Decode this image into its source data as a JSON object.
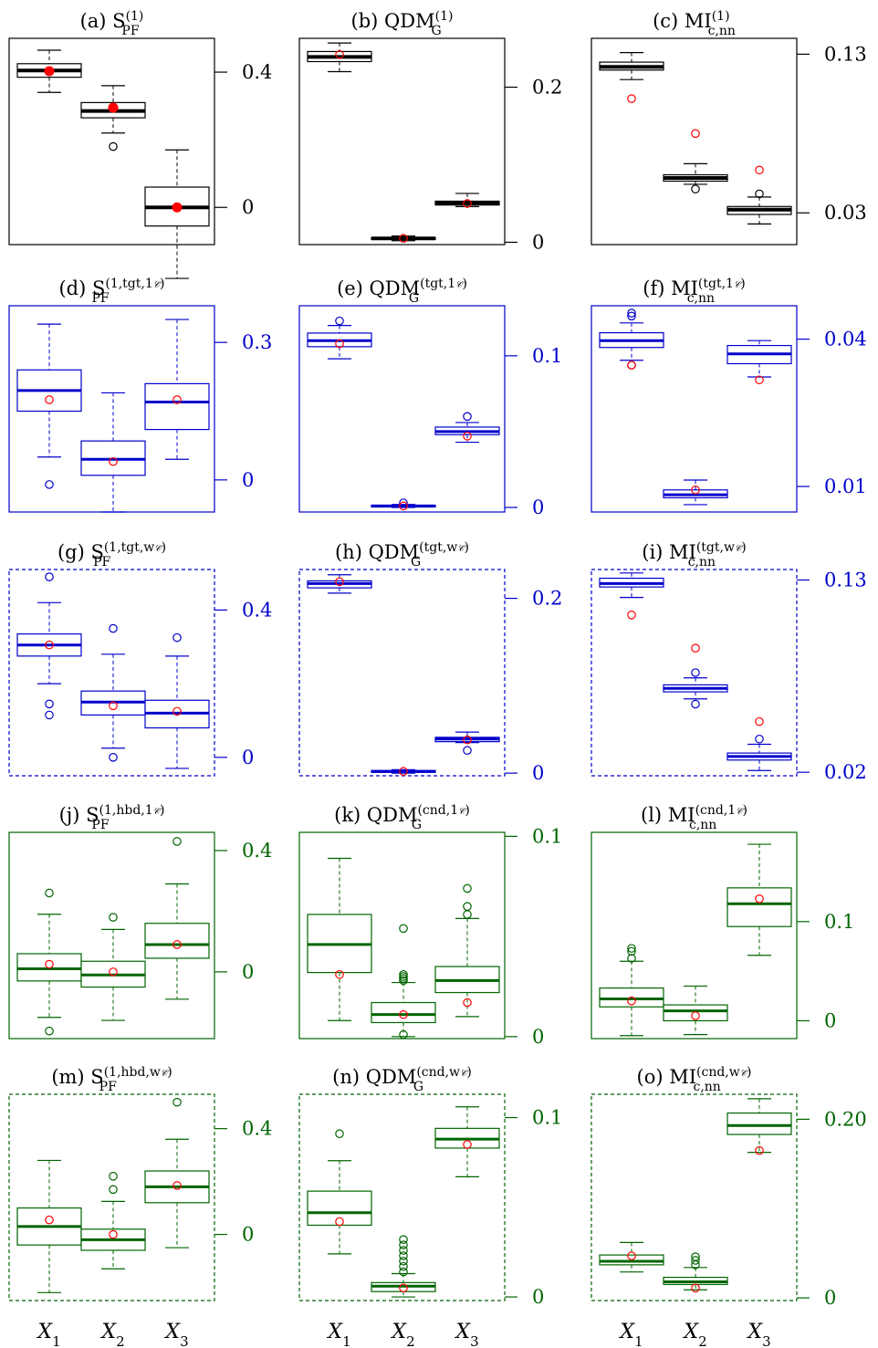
{
  "figure": {
    "x_categories": [
      "X1",
      "X2",
      "X3"
    ],
    "colors": {
      "black": "#000000",
      "blue": "#0000cc",
      "green": "#006400",
      "red": "#ff0000"
    }
  },
  "chart_data": [
    {
      "id": "a",
      "type": "boxplot",
      "title": "(a) S_PF^(1)",
      "title_parts": {
        "prefix": "(a) ",
        "base": "S",
        "sup": "(1)",
        "sub": "PF"
      },
      "color": "black",
      "border": "solid",
      "median_width": 4,
      "mean_marker": "filled",
      "ylim": [
        -0.11,
        0.5
      ],
      "yticks": [
        {
          "v": 0,
          "label": "0"
        },
        {
          "v": 0.4,
          "label": "0.4"
        }
      ],
      "boxes": [
        {
          "whislo": 0.34,
          "q1": 0.385,
          "med": 0.405,
          "q3": 0.425,
          "whishi": 0.465,
          "mean": 0.403,
          "outliers": []
        },
        {
          "whislo": 0.22,
          "q1": 0.265,
          "med": 0.285,
          "q3": 0.31,
          "whishi": 0.36,
          "mean": 0.295,
          "outliers": [
            0.18
          ]
        },
        {
          "whislo": -0.21,
          "q1": -0.055,
          "med": 0,
          "q3": 0.06,
          "whishi": 0.17,
          "mean": 0,
          "outliers": []
        }
      ]
    },
    {
      "id": "b",
      "type": "boxplot",
      "title": "(b) QDM_G^(1)",
      "title_parts": {
        "prefix": "(b) ",
        "base": "QDM",
        "sup": "(1)",
        "sub": "G"
      },
      "color": "black",
      "border": "solid",
      "median_width": 4,
      "mean_marker": "open",
      "ylim": [
        -0.003,
        0.263
      ],
      "yticks": [
        {
          "v": 0,
          "label": "0"
        },
        {
          "v": 0.2,
          "label": "0.2"
        }
      ],
      "boxes": [
        {
          "whislo": 0.22,
          "q1": 0.233,
          "med": 0.239,
          "q3": 0.246,
          "whishi": 0.257,
          "mean": 0.242,
          "outliers": []
        },
        {
          "whislo": 0.002,
          "q1": 0.004,
          "med": 0.005,
          "q3": 0.006,
          "whishi": 0.008,
          "mean": 0.005,
          "outliers": []
        },
        {
          "whislo": 0.046,
          "q1": 0.048,
          "med": 0.051,
          "q3": 0.053,
          "whishi": 0.063,
          "mean": 0.05,
          "outliers": []
        }
      ]
    },
    {
      "id": "c",
      "type": "boxplot",
      "title": "(c) MI_c,nn^(1)",
      "title_parts": {
        "prefix": "(c) ",
        "base": "MI",
        "sup": "(1)",
        "sub": "c,nn"
      },
      "color": "black",
      "border": "solid",
      "median_width": 4,
      "mean_marker": "open",
      "ylim": [
        0.01,
        0.14
      ],
      "yticks": [
        {
          "v": 0.03,
          "label": "0.03"
        },
        {
          "v": 0.13,
          "label": "0.13"
        }
      ],
      "boxes": [
        {
          "whislo": 0.114,
          "q1": 0.12,
          "med": 0.122,
          "q3": 0.125,
          "whishi": 0.131,
          "mean": 0.102,
          "outliers": []
        },
        {
          "whislo": 0.048,
          "q1": 0.05,
          "med": 0.052,
          "q3": 0.054,
          "whishi": 0.061,
          "mean": 0.08,
          "outliers": [
            0.045
          ]
        },
        {
          "whislo": 0.023,
          "q1": 0.029,
          "med": 0.032,
          "q3": 0.034,
          "whishi": 0.04,
          "mean": 0.057,
          "outliers": [
            0.042
          ]
        }
      ]
    },
    {
      "id": "d",
      "type": "boxplot",
      "title": "(d) S_PF^(1,tgt,1_C)",
      "title_parts": {
        "prefix": "(d) ",
        "base": "S",
        "sup": "(1,tgt,1",
        "sup_script": "𝒞",
        "sup_end": ")",
        "sub": "PF"
      },
      "color": "blue",
      "border": "solid",
      "median_width": 3,
      "mean_marker": "open",
      "ylim": [
        -0.07,
        0.38
      ],
      "yticks": [
        {
          "v": 0,
          "label": "0"
        },
        {
          "v": 0.3,
          "label": "0.3"
        }
      ],
      "boxes": [
        {
          "whislo": 0.05,
          "q1": 0.15,
          "med": 0.195,
          "q3": 0.24,
          "whishi": 0.34,
          "mean": 0.175,
          "outliers": [
            -0.01
          ]
        },
        {
          "whislo": -0.07,
          "q1": 0.01,
          "med": 0.045,
          "q3": 0.085,
          "whishi": 0.19,
          "mean": 0.04,
          "outliers": []
        },
        {
          "whislo": 0.045,
          "q1": 0.11,
          "med": 0.17,
          "q3": 0.21,
          "whishi": 0.35,
          "mean": 0.175,
          "outliers": []
        }
      ]
    },
    {
      "id": "e",
      "type": "boxplot",
      "title": "(e) QDM_G^(tgt,1_C)",
      "title_parts": {
        "prefix": "(e) ",
        "base": "QDM",
        "sup": "(tgt,1",
        "sup_script": "𝒞",
        "sup_end": ")",
        "sub": "G"
      },
      "color": "blue",
      "border": "solid",
      "median_width": 3,
      "mean_marker": "open",
      "ylim": [
        -0.003,
        0.133
      ],
      "yticks": [
        {
          "v": 0,
          "label": "0"
        },
        {
          "v": 0.1,
          "label": "0.1"
        }
      ],
      "boxes": [
        {
          "whislo": 0.098,
          "q1": 0.106,
          "med": 0.11,
          "q3": 0.115,
          "whishi": 0.12,
          "mean": 0.108,
          "outliers": [
            0.123
          ]
        },
        {
          "whislo": 0.0,
          "q1": 0.0005,
          "med": 0.001,
          "q3": 0.0015,
          "whishi": 0.002,
          "mean": 0.001,
          "outliers": [
            0.003
          ]
        },
        {
          "whislo": 0.043,
          "q1": 0.048,
          "med": 0.05,
          "q3": 0.053,
          "whishi": 0.056,
          "mean": 0.047,
          "outliers": [
            0.06
          ]
        }
      ]
    },
    {
      "id": "f",
      "type": "boxplot",
      "title": "(f) MI_c,nn^(tgt,1_C)",
      "title_parts": {
        "prefix": "(f) ",
        "base": "MI",
        "sup": "(tgt,1",
        "sup_script": "𝒞",
        "sup_end": ")",
        "sub": "c,nn"
      },
      "color": "blue",
      "border": "solid",
      "median_width": 3,
      "mean_marker": "open",
      "ylim": [
        0.0048,
        0.0468
      ],
      "yticks": [
        {
          "v": 0.01,
          "label": "0.01"
        },
        {
          "v": 0.04,
          "label": "0.04"
        }
      ],
      "boxes": [
        {
          "whislo": 0.0357,
          "q1": 0.0383,
          "med": 0.0397,
          "q3": 0.0413,
          "whishi": 0.0433,
          "mean": 0.0347,
          "outliers": [
            0.0347,
            0.0447,
            0.0453
          ]
        },
        {
          "whislo": 0.0063,
          "q1": 0.0077,
          "med": 0.0083,
          "q3": 0.0093,
          "whishi": 0.0113,
          "mean": 0.0093,
          "outliers": []
        },
        {
          "whislo": 0.0323,
          "q1": 0.035,
          "med": 0.037,
          "q3": 0.0387,
          "whishi": 0.0397,
          "mean": 0.0317,
          "outliers": []
        }
      ]
    },
    {
      "id": "g",
      "type": "boxplot",
      "title": "(g) S_PF^(1,tgt,w_C)",
      "title_parts": {
        "prefix": "(g) ",
        "base": "S",
        "sup": "(1,tgt,w",
        "sup_script": "𝒞",
        "sup_end": ")",
        "sub": "PF"
      },
      "color": "blue",
      "border": "dashed",
      "median_width": 3,
      "mean_marker": "open",
      "ylim": [
        -0.05,
        0.51
      ],
      "yticks": [
        {
          "v": 0,
          "label": "0"
        },
        {
          "v": 0.4,
          "label": "0.4"
        }
      ],
      "boxes": [
        {
          "whislo": 0.2,
          "q1": 0.275,
          "med": 0.305,
          "q3": 0.335,
          "whishi": 0.42,
          "mean": 0.305,
          "outliers": [
            0.145,
            0.115,
            0.49
          ]
        },
        {
          "whislo": 0.025,
          "q1": 0.115,
          "med": 0.15,
          "q3": 0.18,
          "whishi": 0.28,
          "mean": 0.14,
          "outliers": [
            0.0,
            0.35
          ]
        },
        {
          "whislo": -0.03,
          "q1": 0.08,
          "med": 0.12,
          "q3": 0.155,
          "whishi": 0.275,
          "mean": 0.125,
          "outliers": [
            0.325
          ]
        }
      ]
    },
    {
      "id": "h",
      "type": "boxplot",
      "title": "(h) QDM_G^(tgt,w_C)",
      "title_parts": {
        "prefix": "(h) ",
        "base": "QDM",
        "sup": "(tgt,w",
        "sup_script": "𝒞",
        "sup_end": ")",
        "sub": "G"
      },
      "color": "blue",
      "border": "dashed",
      "median_width": 3,
      "mean_marker": "open",
      "ylim": [
        -0.003,
        0.233
      ],
      "yticks": [
        {
          "v": 0,
          "label": "0"
        },
        {
          "v": 0.2,
          "label": "0.2"
        }
      ],
      "boxes": [
        {
          "whislo": 0.206,
          "q1": 0.212,
          "med": 0.217,
          "q3": 0.22,
          "whishi": 0.227,
          "mean": 0.219,
          "outliers": []
        },
        {
          "whislo": 0.0,
          "q1": 0.001,
          "med": 0.002,
          "q3": 0.003,
          "whishi": 0.004,
          "mean": 0.002,
          "outliers": []
        },
        {
          "whislo": 0.035,
          "q1": 0.036,
          "med": 0.039,
          "q3": 0.041,
          "whishi": 0.047,
          "mean": 0.038,
          "outliers": [
            0.026
          ]
        }
      ]
    },
    {
      "id": "i",
      "type": "boxplot",
      "title": "(i) MI_c,nn^(tgt,w_C)",
      "title_parts": {
        "prefix": "(i) ",
        "base": "MI",
        "sup": "(tgt,w",
        "sup_script": "𝒞",
        "sup_end": ")",
        "sub": "c,nn"
      },
      "color": "blue",
      "border": "dashed",
      "median_width": 3,
      "mean_marker": "open",
      "ylim": [
        0.018,
        0.136
      ],
      "yticks": [
        {
          "v": 0.02,
          "label": "0.02"
        },
        {
          "v": 0.13,
          "label": "0.13"
        }
      ],
      "boxes": [
        {
          "whislo": 0.12,
          "q1": 0.126,
          "med": 0.128,
          "q3": 0.131,
          "whishi": 0.134,
          "mean": 0.11,
          "outliers": []
        },
        {
          "whislo": 0.062,
          "q1": 0.066,
          "med": 0.068,
          "q3": 0.07,
          "whishi": 0.074,
          "mean": 0.091,
          "outliers": [
            0.059,
            0.077
          ]
        },
        {
          "whislo": 0.021,
          "q1": 0.027,
          "med": 0.029,
          "q3": 0.031,
          "whishi": 0.036,
          "mean": 0.049,
          "outliers": [
            0.039
          ]
        }
      ]
    },
    {
      "id": "j",
      "type": "boxplot",
      "title": "(j) S_PF^(1,hbd,1_C)",
      "title_parts": {
        "prefix": "(j) ",
        "base": "S",
        "sup": "(1,hbd,1",
        "sup_script": "𝒞",
        "sup_end": ")",
        "sub": "PF"
      },
      "color": "green",
      "border": "solid",
      "median_width": 3,
      "mean_marker": "open",
      "ylim": [
        -0.22,
        0.46
      ],
      "yticks": [
        {
          "v": 0,
          "label": "0"
        },
        {
          "v": 0.4,
          "label": "0.4"
        }
      ],
      "boxes": [
        {
          "whislo": -0.15,
          "q1": -0.03,
          "med": 0.01,
          "q3": 0.06,
          "whishi": 0.19,
          "mean": 0.025,
          "outliers": [
            -0.195,
            0.26
          ]
        },
        {
          "whislo": -0.16,
          "q1": -0.05,
          "med": -0.01,
          "q3": 0.035,
          "whishi": 0.14,
          "mean": 0.0,
          "outliers": [
            0.18
          ]
        },
        {
          "whislo": -0.09,
          "q1": 0.045,
          "med": 0.09,
          "q3": 0.16,
          "whishi": 0.29,
          "mean": 0.09,
          "outliers": [
            0.43
          ]
        }
      ]
    },
    {
      "id": "k",
      "type": "boxplot",
      "title": "(k) QDM_G^(cnd,1_C)",
      "title_parts": {
        "prefix": "(k) ",
        "base": "QDM",
        "sup": "(cnd,1",
        "sup_script": "𝒞",
        "sup_end": ")",
        "sub": "G"
      },
      "color": "green",
      "border": "solid",
      "median_width": 3,
      "mean_marker": "open",
      "ylim": [
        -0.001,
        0.102
      ],
      "yticks": [
        {
          "v": 0,
          "label": "0"
        },
        {
          "v": 0.1,
          "label": "0.1"
        }
      ],
      "boxes": [
        {
          "whislo": 0.008,
          "q1": 0.032,
          "med": 0.046,
          "q3": 0.061,
          "whishi": 0.089,
          "mean": 0.031,
          "outliers": []
        },
        {
          "whislo": 0.0,
          "q1": 0.007,
          "med": 0.011,
          "q3": 0.017,
          "whishi": 0.027,
          "mean": 0.011,
          "outliers": [
            0.001,
            0.028,
            0.029,
            0.03,
            0.031,
            0.054
          ]
        },
        {
          "whislo": 0.01,
          "q1": 0.022,
          "med": 0.028,
          "q3": 0.035,
          "whishi": 0.059,
          "mean": 0.017,
          "outliers": [
            0.061,
            0.065,
            0.074
          ]
        }
      ]
    },
    {
      "id": "l",
      "type": "boxplot",
      "title": "(l) MI_c,nn^(cnd,1_C)",
      "title_parts": {
        "prefix": "(l) ",
        "base": "MI",
        "sup": "(cnd,1",
        "sup_script": "𝒞",
        "sup_end": ")",
        "sub": "c,nn"
      },
      "color": "green",
      "border": "solid",
      "median_width": 3,
      "mean_marker": "open",
      "ylim": [
        -0.018,
        0.19
      ],
      "yticks": [
        {
          "v": 0,
          "label": "0"
        },
        {
          "v": 0.1,
          "label": "0.1"
        }
      ],
      "boxes": [
        {
          "whislo": -0.015,
          "q1": 0.014,
          "med": 0.022,
          "q3": 0.033,
          "whishi": 0.06,
          "mean": 0.02,
          "outliers": [
            0.063,
            0.07,
            0.073
          ]
        },
        {
          "whislo": -0.014,
          "q1": 0.0,
          "med": 0.01,
          "q3": 0.016,
          "whishi": 0.035,
          "mean": 0.005,
          "outliers": []
        },
        {
          "whislo": 0.066,
          "q1": 0.095,
          "med": 0.118,
          "q3": 0.134,
          "whishi": 0.178,
          "mean": 0.123,
          "outliers": []
        }
      ]
    },
    {
      "id": "m",
      "type": "boxplot",
      "title": "(m) S_PF^(1,hbd,w_C)",
      "title_parts": {
        "prefix": "(m) ",
        "base": "S",
        "sup": "(1,hbd,w",
        "sup_script": "𝒞",
        "sup_end": ")",
        "sub": "PF"
      },
      "color": "green",
      "border": "dashed",
      "median_width": 3,
      "mean_marker": "open",
      "ylim": [
        -0.25,
        0.53
      ],
      "yticks": [
        {
          "v": 0,
          "label": "0"
        },
        {
          "v": 0.4,
          "label": "0.4"
        }
      ],
      "boxes": [
        {
          "whislo": -0.22,
          "q1": -0.04,
          "med": 0.03,
          "q3": 0.1,
          "whishi": 0.28,
          "mean": 0.055,
          "outliers": []
        },
        {
          "whislo": -0.13,
          "q1": -0.06,
          "med": -0.02,
          "q3": 0.02,
          "whishi": 0.125,
          "mean": 0.0,
          "outliers": [
            0.17,
            0.22
          ]
        },
        {
          "whislo": -0.05,
          "q1": 0.12,
          "med": 0.18,
          "q3": 0.24,
          "whishi": 0.36,
          "mean": 0.185,
          "outliers": [
            0.5
          ]
        }
      ]
    },
    {
      "id": "n",
      "type": "boxplot",
      "title": "(n) QDM_G^(cnd,w_C)",
      "title_parts": {
        "prefix": "(n) ",
        "base": "QDM",
        "sup": "(cnd,w",
        "sup_script": "𝒞",
        "sup_end": ")",
        "sub": "G"
      },
      "color": "green",
      "border": "dashed",
      "median_width": 3,
      "mean_marker": "open",
      "ylim": [
        -0.002,
        0.113
      ],
      "yticks": [
        {
          "v": 0,
          "label": "0"
        },
        {
          "v": 0.1,
          "label": "0.1"
        }
      ],
      "boxes": [
        {
          "whislo": 0.024,
          "q1": 0.04,
          "med": 0.047,
          "q3": 0.059,
          "whishi": 0.076,
          "mean": 0.042,
          "outliers": [
            0.091
          ]
        },
        {
          "whislo": 0.0,
          "q1": 0.003,
          "med": 0.006,
          "q3": 0.008,
          "whishi": 0.013,
          "mean": 0.005,
          "outliers": [
            0.014,
            0.017,
            0.02,
            0.023,
            0.026,
            0.029,
            0.032
          ]
        },
        {
          "whislo": 0.067,
          "q1": 0.083,
          "med": 0.088,
          "q3": 0.094,
          "whishi": 0.106,
          "mean": 0.085,
          "outliers": []
        }
      ]
    },
    {
      "id": "o",
      "type": "boxplot",
      "title": "(o) MI_c,nn^(cnd,w_C)",
      "title_parts": {
        "prefix": "(o) ",
        "base": "MI",
        "sup": "(cnd,w",
        "sup_script": "𝒞",
        "sup_end": ")",
        "sub": "c,nn"
      },
      "color": "green",
      "border": "dashed",
      "median_width": 3,
      "mean_marker": "open",
      "ylim": [
        -0.003,
        0.228
      ],
      "yticks": [
        {
          "v": 0,
          "label": "0"
        },
        {
          "v": 0.2,
          "label": "0.20"
        }
      ],
      "boxes": [
        {
          "whislo": 0.029,
          "q1": 0.037,
          "med": 0.041,
          "q3": 0.048,
          "whishi": 0.062,
          "mean": 0.047,
          "outliers": []
        },
        {
          "whislo": 0.009,
          "q1": 0.015,
          "med": 0.018,
          "q3": 0.023,
          "whishi": 0.034,
          "mean": 0.011,
          "outliers": [
            0.037,
            0.042,
            0.046
          ]
        },
        {
          "whislo": 0.163,
          "q1": 0.183,
          "med": 0.193,
          "q3": 0.207,
          "whishi": 0.223,
          "mean": 0.165,
          "outliers": []
        }
      ]
    }
  ]
}
